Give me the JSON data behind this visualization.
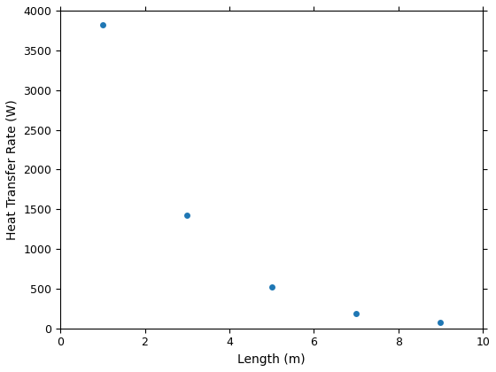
{
  "x": [
    1,
    3,
    5,
    7,
    9
  ],
  "y": [
    3820,
    1420,
    525,
    185,
    75
  ],
  "marker": "o",
  "marker_color": "#1f77b4",
  "marker_size": 5,
  "xlabel": "Length (m)",
  "ylabel": "Heat Transfer Rate (W)",
  "xlim": [
    0,
    10
  ],
  "ylim": [
    0,
    4000
  ],
  "xticks": [
    0,
    2,
    4,
    6,
    8,
    10
  ],
  "yticks": [
    0,
    500,
    1000,
    1500,
    2000,
    2500,
    3000,
    3500,
    4000
  ],
  "label_fontsize": 10,
  "tick_fontsize": 9,
  "background_color": "#ffffff"
}
